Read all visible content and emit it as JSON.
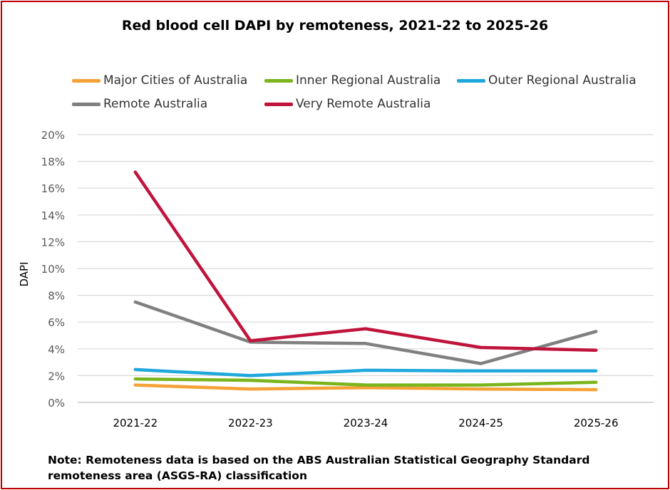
{
  "chart_data": {
    "type": "line",
    "title": "Red blood cell DAPI by remoteness, 2021-22 to 2025-26",
    "xlabel": "",
    "ylabel": "DAPI",
    "categories": [
      "2021-22",
      "2022-23",
      "2023-24",
      "2024-25",
      "2025-26"
    ],
    "ylim": [
      0,
      20
    ],
    "ytick_labels": [
      "0%",
      "2%",
      "4%",
      "6%",
      "8%",
      "10%",
      "12%",
      "14%",
      "16%",
      "18%",
      "20%"
    ],
    "grid": true,
    "legend_position": "top",
    "series": [
      {
        "name": "Major Cities of Australia",
        "color": "#f4a236",
        "values": [
          1.3,
          1.0,
          1.1,
          1.0,
          0.95
        ]
      },
      {
        "name": "Inner Regional Australia",
        "color": "#7ab51d",
        "values": [
          1.75,
          1.65,
          1.3,
          1.3,
          1.5
        ]
      },
      {
        "name": "Outer Regional Australia",
        "color": "#1fa8dc",
        "values": [
          2.45,
          2.0,
          2.4,
          2.35,
          2.35
        ]
      },
      {
        "name": "Remote Australia",
        "color": "#808080",
        "values": [
          7.5,
          4.5,
          4.4,
          2.9,
          5.3
        ]
      },
      {
        "name": "Very Remote Australia",
        "color": "#c0143c",
        "values": [
          17.2,
          4.6,
          5.5,
          4.1,
          3.9
        ]
      }
    ]
  },
  "note": "Note: Remoteness data is based on the ABS Australian Statistical Geography Standard remoteness area (ASGS-RA) classification"
}
